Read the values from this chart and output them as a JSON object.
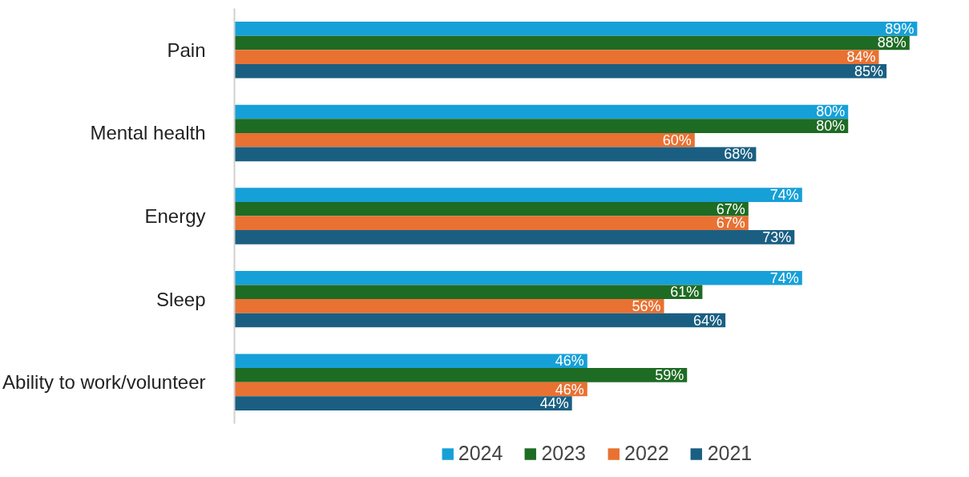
{
  "chart_data": {
    "type": "bar",
    "orientation": "horizontal",
    "categories": [
      "Pain",
      "Mental health",
      "Energy",
      "Sleep",
      "Ability to work/volunteer"
    ],
    "series": [
      {
        "name": "2024",
        "color": "#16a0d8",
        "values": [
          89,
          80,
          74,
          74,
          46
        ],
        "value_labels": [
          "89%",
          "80%",
          "74%",
          "74%",
          "46%"
        ]
      },
      {
        "name": "2023",
        "color": "#1e6b24",
        "values": [
          88,
          80,
          67,
          61,
          59
        ],
        "value_labels": [
          "88%",
          "80%",
          "67%",
          "61%",
          "59%"
        ]
      },
      {
        "name": "2022",
        "color": "#e97132",
        "values": [
          84,
          60,
          67,
          56,
          46
        ],
        "value_labels": [
          "84%",
          "60%",
          "67%",
          "56%",
          "46%"
        ]
      },
      {
        "name": "2021",
        "color": "#1a5f82",
        "values": [
          85,
          68,
          73,
          64,
          44
        ],
        "value_labels": [
          "85%",
          "68%",
          "73%",
          "64%",
          "44%"
        ]
      }
    ],
    "data_labels": true,
    "tick_labels": "y",
    "grid": false,
    "legend": "bottom"
  }
}
